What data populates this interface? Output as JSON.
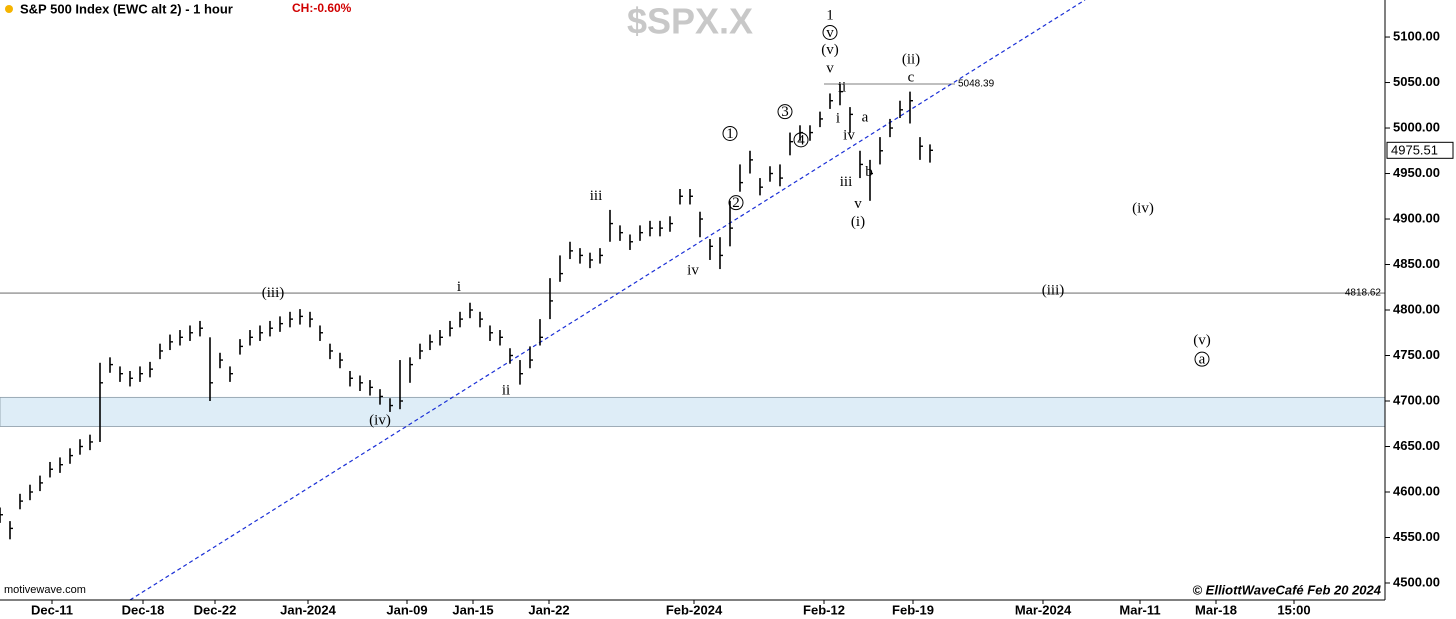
{
  "chart_data": {
    "type": "ohlc",
    "title": "S&P 500 Index (EWC alt 2) - 1 hour",
    "change": "CH:-0.60%",
    "watermark": "$SPX.X",
    "source": "motivewave.com",
    "credit": "© ElliottWaveCafé Feb 20 2024",
    "color": "#000000",
    "close": [
      4575,
      4560,
      4590,
      4600,
      4610,
      4625,
      4630,
      4640,
      4650,
      4655,
      4720,
      4740,
      4730,
      4725,
      4730,
      4735,
      4755,
      4765,
      4770,
      4775,
      4780,
      4720,
      4745,
      4730,
      4760,
      4770,
      4775,
      4780,
      4785,
      4790,
      4793,
      4790,
      4775,
      4755,
      4745,
      4725,
      4720,
      4715,
      4705,
      4695,
      4700,
      4740,
      4755,
      4765,
      4770,
      4780,
      4790,
      4800,
      4790,
      4775,
      4770,
      4750,
      4730,
      4745,
      4770,
      4810,
      4840,
      4865,
      4860,
      4855,
      4860,
      4895,
      4885,
      4875,
      4885,
      4890,
      4890,
      4895,
      4925,
      4925,
      4900,
      4870,
      4860,
      4890,
      4940,
      4965,
      4935,
      4950,
      4945,
      4985,
      4995,
      4995,
      5010,
      5030,
      5040,
      5015,
      4960,
      4950,
      4975,
      5000,
      5020,
      5030,
      4980,
      4975.51
    ],
    "high": [
      4583,
      4568,
      4598,
      4608,
      4618,
      4633,
      4638,
      4648,
      4658,
      4663,
      4742,
      4748,
      4738,
      4733,
      4738,
      4743,
      4763,
      4773,
      4778,
      4783,
      4788,
      4770,
      4753,
      4738,
      4768,
      4778,
      4783,
      4788,
      4793,
      4798,
      4801,
      4798,
      4783,
      4763,
      4753,
      4733,
      4728,
      4723,
      4713,
      4703,
      4745,
      4748,
      4763,
      4773,
      4778,
      4788,
      4798,
      4808,
      4798,
      4783,
      4778,
      4758,
      4745,
      4760,
      4790,
      4835,
      4860,
      4875,
      4868,
      4863,
      4868,
      4910,
      4893,
      4883,
      4893,
      4898,
      4898,
      4903,
      4933,
      4933,
      4908,
      4878,
      4880,
      4920,
      4960,
      4975,
      4945,
      4958,
      4960,
      4995,
      5003,
      5003,
      5018,
      5038,
      5048.39,
      5023,
      4975,
      4965,
      4990,
      5010,
      5030,
      5040,
      4990,
      4982
    ],
    "low": [
      4566,
      4548,
      4581,
      4591,
      4601,
      4616,
      4621,
      4631,
      4641,
      4646,
      4655,
      4731,
      4721,
      4716,
      4721,
      4726,
      4746,
      4756,
      4761,
      4766,
      4771,
      4700,
      4736,
      4721,
      4751,
      4761,
      4766,
      4771,
      4776,
      4781,
      4784,
      4781,
      4766,
      4746,
      4736,
      4716,
      4711,
      4706,
      4696,
      4688,
      4691,
      4720,
      4746,
      4756,
      4761,
      4771,
      4781,
      4791,
      4781,
      4766,
      4761,
      4741,
      4718,
      4736,
      4761,
      4790,
      4831,
      4856,
      4851,
      4846,
      4851,
      4875,
      4876,
      4866,
      4876,
      4881,
      4881,
      4886,
      4916,
      4916,
      4880,
      4855,
      4845,
      4870,
      4930,
      4950,
      4926,
      4941,
      4936,
      4970,
      4986,
      4986,
      5001,
      5021,
      5025,
      4995,
      4945,
      4920,
      4960,
      4990,
      5011,
      5005,
      4965,
      4962
    ],
    "xlim": [
      0,
      138.5
    ],
    "xticks": [
      {
        "value": 5.2,
        "label": "Dec-11"
      },
      {
        "value": 14.3,
        "label": "Dec-18"
      },
      {
        "value": 21.5,
        "label": "Dec-22"
      },
      {
        "value": 30.8,
        "label": "Jan-2024"
      },
      {
        "value": 40.7,
        "label": "Jan-09"
      },
      {
        "value": 47.3,
        "label": "Jan-15"
      },
      {
        "value": 54.9,
        "label": "Jan-22"
      },
      {
        "value": 69.4,
        "label": "Feb-2024"
      },
      {
        "value": 82.4,
        "label": "Feb-12"
      },
      {
        "value": 91.3,
        "label": "Feb-19"
      },
      {
        "value": 104.3,
        "label": "Mar-2024"
      },
      {
        "value": 114,
        "label": "Mar-11"
      },
      {
        "value": 121.6,
        "label": "Mar-18"
      },
      {
        "value": 129.4,
        "label": "15:00"
      }
    ],
    "ylim": [
      4481.3,
      5140.7
    ],
    "yticks": [
      {
        "value": 4500,
        "label": "4500.00"
      },
      {
        "value": 4550,
        "label": "4550.00"
      },
      {
        "value": 4600,
        "label": "4600.00"
      },
      {
        "value": 4650,
        "label": "4650.00"
      },
      {
        "value": 4700,
        "label": "4700.00"
      },
      {
        "value": 4750,
        "label": "4750.00"
      },
      {
        "value": 4800,
        "label": "4800.00"
      },
      {
        "value": 4850,
        "label": "4850.00"
      },
      {
        "value": 4900,
        "label": "4900.00"
      },
      {
        "value": 4950,
        "label": "4950.00"
      },
      {
        "value": 5000,
        "label": "5000.00"
      },
      {
        "value": 5050,
        "label": "5050.00"
      },
      {
        "value": 5100,
        "label": "5100.00"
      }
    ],
    "zone": [
      4672,
      4704
    ],
    "levels": [
      {
        "value": 5048.39,
        "x": [
          82.4,
          95.5
        ]
      },
      {
        "value": 4818.62
      }
    ],
    "trendline": {
      "x": [
        13,
        108.5
      ],
      "y": [
        4481.3,
        5140.7
      ]
    },
    "annotations": [
      {
        "text": "1",
        "x": 83,
        "y": 5124
      },
      {
        "text": "v",
        "x": 83,
        "y": 5105,
        "circled": true
      },
      {
        "text": "(v)",
        "x": 83,
        "y": 5086
      },
      {
        "text": "v",
        "x": 83,
        "y": 5066
      },
      {
        "text": "ii",
        "x": 84.2,
        "y": 5045
      },
      {
        "text": "i",
        "x": 83.8,
        "y": 5011
      },
      {
        "text": "iv",
        "x": 84.9,
        "y": 4992
      },
      {
        "text": "iii",
        "x": 84.6,
        "y": 4941
      },
      {
        "text": "v",
        "x": 85.8,
        "y": 4917
      },
      {
        "text": "(i)",
        "x": 85.8,
        "y": 4897
      },
      {
        "text": "a",
        "x": 86.5,
        "y": 5012
      },
      {
        "text": "b",
        "x": 86.9,
        "y": 4952
      },
      {
        "text": "c",
        "x": 91.1,
        "y": 5056
      },
      {
        "text": "(ii)",
        "x": 91.1,
        "y": 5076
      },
      {
        "text": "3",
        "x": 78.5,
        "y": 5018,
        "circled": true
      },
      {
        "text": "4",
        "x": 80.1,
        "y": 4987,
        "circled": true
      },
      {
        "text": "1",
        "x": 73,
        "y": 4994,
        "circled": true
      },
      {
        "text": "2",
        "x": 73.6,
        "y": 4918,
        "circled": true
      },
      {
        "text": "iii",
        "x": 59.6,
        "y": 4926
      },
      {
        "text": "iv",
        "x": 69.3,
        "y": 4844
      },
      {
        "text": "i",
        "x": 45.9,
        "y": 4826
      },
      {
        "text": "ii",
        "x": 50.6,
        "y": 4712
      },
      {
        "text": "(iii)",
        "x": 27.3,
        "y": 4819
      },
      {
        "text": "(iv)",
        "x": 38,
        "y": 4679
      },
      {
        "text": "(iii)",
        "x": 105.3,
        "y": 4822
      },
      {
        "text": "(iv)",
        "x": 114.3,
        "y": 4912
      },
      {
        "text": "(v)",
        "x": 120.2,
        "y": 4767
      },
      {
        "text": "a",
        "x": 120.2,
        "y": 4746,
        "circled": true
      }
    ]
  }
}
